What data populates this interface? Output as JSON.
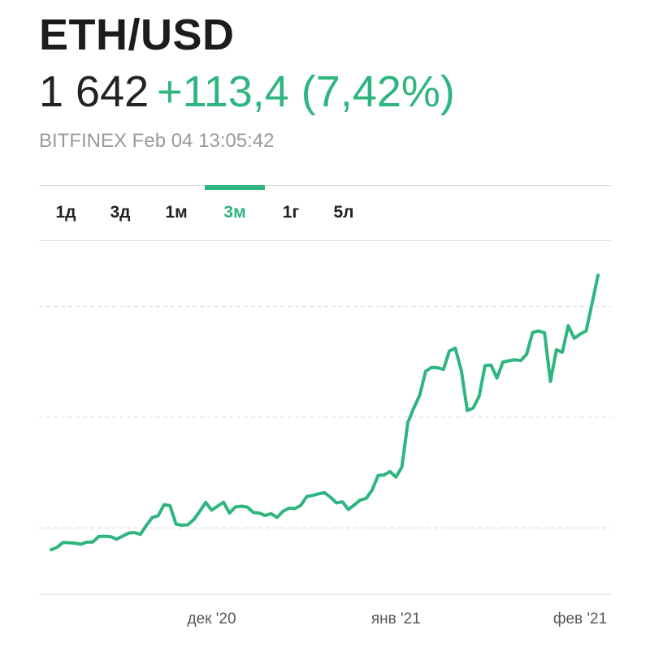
{
  "header": {
    "symbol": "ETH/USD",
    "price": "1 642",
    "change": "+113,4 (7,42%)",
    "meta": "BITFINEX Feb 04 13:05:42"
  },
  "tabs": [
    {
      "label": "1д",
      "active": false
    },
    {
      "label": "3д",
      "active": false
    },
    {
      "label": "1м",
      "active": false
    },
    {
      "label": "3м",
      "active": true
    },
    {
      "label": "1г",
      "active": false
    },
    {
      "label": "5л",
      "active": false
    }
  ],
  "colors": {
    "accent": "#2fb57f",
    "text": "#222222",
    "muted": "#9a9a9a"
  },
  "chart_data": {
    "type": "line",
    "title": "",
    "xlabel": "",
    "ylabel": "",
    "x_tick_labels": [
      "дек '20",
      "янв '21",
      "фев '21"
    ],
    "x_ticks": [
      "2020-12-01",
      "2021-01-01",
      "2021-02-01"
    ],
    "xlim": [
      "2020-11-04",
      "2021-02-04"
    ],
    "ylim": [
      200,
      1800
    ],
    "gridlines": [
      500,
      1000,
      1500
    ],
    "grid": true,
    "series": [
      {
        "color": "#2fb57f",
        "points": [
          [
            "2020-11-04",
            401
          ],
          [
            "2020-11-05",
            412
          ],
          [
            "2020-11-06",
            434
          ],
          [
            "2020-11-07",
            433
          ],
          [
            "2020-11-08",
            431
          ],
          [
            "2020-11-09",
            426
          ],
          [
            "2020-11-10",
            436
          ],
          [
            "2020-11-11",
            436
          ],
          [
            "2020-11-12",
            461
          ],
          [
            "2020-11-13",
            462
          ],
          [
            "2020-11-14",
            460
          ],
          [
            "2020-11-15",
            449
          ],
          [
            "2020-11-16",
            462
          ],
          [
            "2020-11-17",
            476
          ],
          [
            "2020-11-18",
            479
          ],
          [
            "2020-11-19",
            471
          ],
          [
            "2020-11-20",
            510
          ],
          [
            "2020-11-21",
            547
          ],
          [
            "2020-11-22",
            555
          ],
          [
            "2020-11-23",
            605
          ],
          [
            "2020-11-24",
            600
          ],
          [
            "2020-11-25",
            517
          ],
          [
            "2020-11-26",
            512
          ],
          [
            "2020-11-27",
            514
          ],
          [
            "2020-11-28",
            538
          ],
          [
            "2020-11-29",
            575
          ],
          [
            "2020-11-30",
            615
          ],
          [
            "2020-12-01",
            580
          ],
          [
            "2020-12-02",
            598
          ],
          [
            "2020-12-03",
            616
          ],
          [
            "2020-12-04",
            567
          ],
          [
            "2020-12-05",
            595
          ],
          [
            "2020-12-06",
            598
          ],
          [
            "2020-12-07",
            594
          ],
          [
            "2020-12-08",
            570
          ],
          [
            "2020-12-09",
            567
          ],
          [
            "2020-12-10",
            556
          ],
          [
            "2020-12-11",
            564
          ],
          [
            "2020-12-12",
            547
          ],
          [
            "2020-12-13",
            575
          ],
          [
            "2020-12-14",
            589
          ],
          [
            "2020-12-15",
            587
          ],
          [
            "2020-12-16",
            602
          ],
          [
            "2020-12-17",
            642
          ],
          [
            "2020-12-18",
            647
          ],
          [
            "2020-12-19",
            654
          ],
          [
            "2020-12-20",
            659
          ],
          [
            "2020-12-21",
            638
          ],
          [
            "2020-12-22",
            613
          ],
          [
            "2020-12-23",
            618
          ],
          [
            "2020-12-24",
            583
          ],
          [
            "2020-12-25",
            604
          ],
          [
            "2020-12-26",
            626
          ],
          [
            "2020-12-27",
            633
          ],
          [
            "2020-12-28",
            671
          ],
          [
            "2020-12-29",
            737
          ],
          [
            "2020-12-30",
            739
          ],
          [
            "2020-12-31",
            755
          ],
          [
            "2021-01-01",
            729
          ],
          [
            "2021-01-02",
            775
          ],
          [
            "2021-01-03",
            975
          ],
          [
            "2021-01-04",
            1041
          ],
          [
            "2021-01-05",
            1099
          ],
          [
            "2021-01-06",
            1208
          ],
          [
            "2021-01-07",
            1225
          ],
          [
            "2021-01-08",
            1224
          ],
          [
            "2021-01-09",
            1216
          ],
          [
            "2021-01-10",
            1300
          ],
          [
            "2021-01-11",
            1312
          ],
          [
            "2021-01-12",
            1211
          ],
          [
            "2021-01-13",
            1031
          ],
          [
            "2021-01-14",
            1042
          ],
          [
            "2021-01-15",
            1095
          ],
          [
            "2021-01-16",
            1234
          ],
          [
            "2021-01-17",
            1236
          ],
          [
            "2021-01-18",
            1177
          ],
          [
            "2021-01-19",
            1250
          ],
          [
            "2021-01-20",
            1255
          ],
          [
            "2021-01-21",
            1260
          ],
          [
            "2021-01-22",
            1256
          ],
          [
            "2021-01-23",
            1285
          ],
          [
            "2021-01-24",
            1383
          ],
          [
            "2021-01-25",
            1390
          ],
          [
            "2021-01-26",
            1382
          ],
          [
            "2021-01-27",
            1162
          ],
          [
            "2021-01-28",
            1305
          ],
          [
            "2021-01-29",
            1294
          ],
          [
            "2021-01-30",
            1414
          ],
          [
            "2021-01-31",
            1357
          ],
          [
            "2021-02-01",
            1376
          ],
          [
            "2021-02-02",
            1390
          ],
          [
            "2021-02-03",
            1515
          ],
          [
            "2021-02-04",
            1642
          ]
        ]
      }
    ]
  }
}
